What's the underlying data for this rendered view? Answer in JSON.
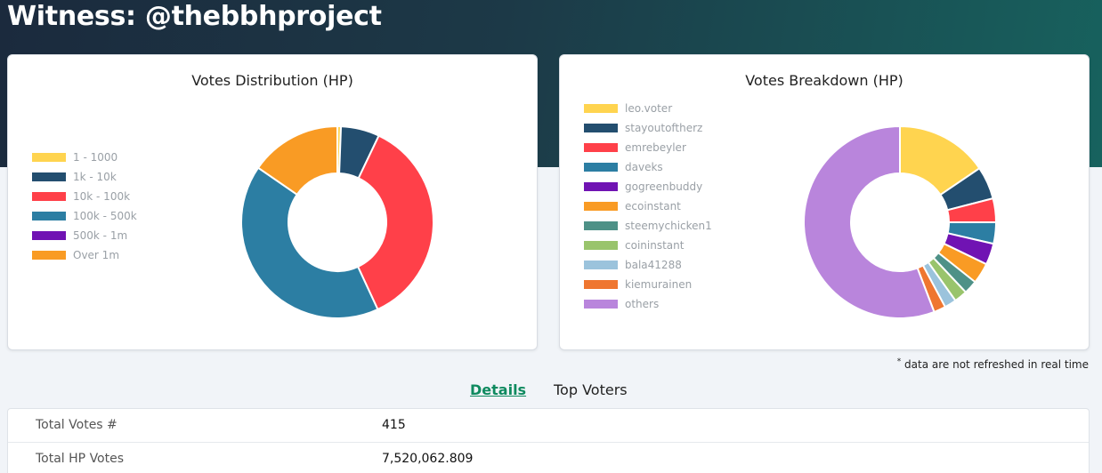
{
  "page": {
    "title": "Witness: @thebbhproject",
    "note_mark": "*",
    "note_text": " data are not refreshed in real time"
  },
  "tabs": [
    {
      "label": "Details",
      "active": true
    },
    {
      "label": "Top Voters",
      "active": false
    }
  ],
  "details": [
    {
      "label": "Total Votes #",
      "value": "415"
    },
    {
      "label": "Total HP Votes",
      "value": "7,520,062.809"
    }
  ],
  "chart_data": [
    {
      "type": "pie",
      "title": "Votes Distribution (HP)",
      "legend_position": "left",
      "categories": [
        "1 - 1000",
        "1k - 10k",
        "10k - 100k",
        "100k - 500k",
        "500k - 1m",
        "Over 1m"
      ],
      "values": [
        0.6,
        6.5,
        36.0,
        41.5,
        0.0,
        15.4
      ],
      "colors": [
        "#ffd44f",
        "#234e6f",
        "#ff4049",
        "#2c7ea3",
        "#7013b3",
        "#f99b24"
      ],
      "unit": "percent (estimated)"
    },
    {
      "type": "pie",
      "title": "Votes Breakdown (HP)",
      "legend_position": "top-left",
      "categories": [
        "leo.voter",
        "stayoutoftherz",
        "emrebeyler",
        "daveks",
        "gogreenbuddy",
        "ecoinstant",
        "steemychicken1",
        "coininstant",
        "bala41288",
        "kiemurainen",
        "others"
      ],
      "values": [
        15.5,
        5.5,
        4.0,
        3.6,
        3.6,
        3.5,
        2.3,
        2.2,
        2.0,
        2.0,
        55.8
      ],
      "colors": [
        "#ffd44f",
        "#234e6f",
        "#ff4049",
        "#2c7ea3",
        "#7013b3",
        "#f99b24",
        "#4e9187",
        "#99c46c",
        "#9bc3dc",
        "#ef7630",
        "#b985dc"
      ],
      "unit": "percent (estimated)"
    }
  ]
}
